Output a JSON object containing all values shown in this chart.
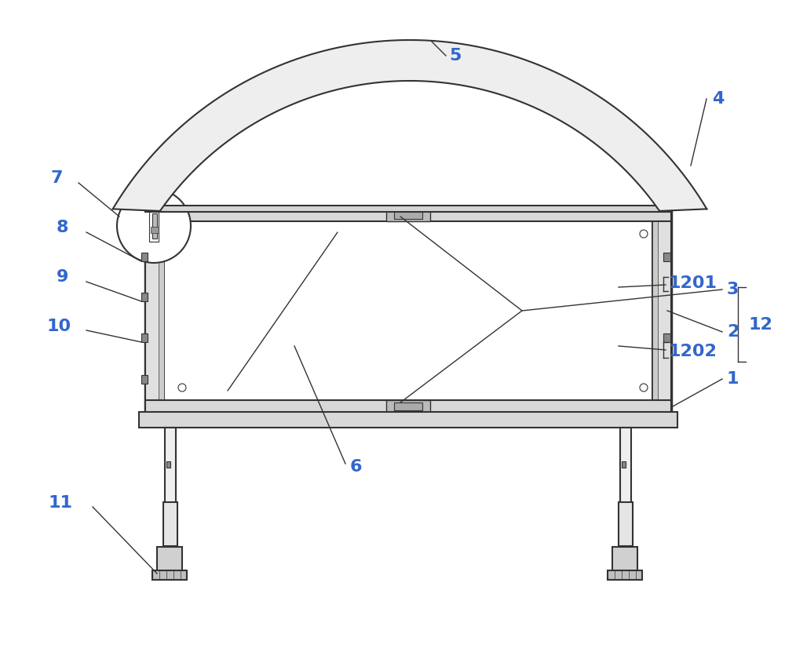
{
  "bg_color": "#ffffff",
  "line_color": "#333333",
  "label_color": "#3366cc",
  "figsize": [
    10.0,
    8.31
  ],
  "dpi": 100
}
